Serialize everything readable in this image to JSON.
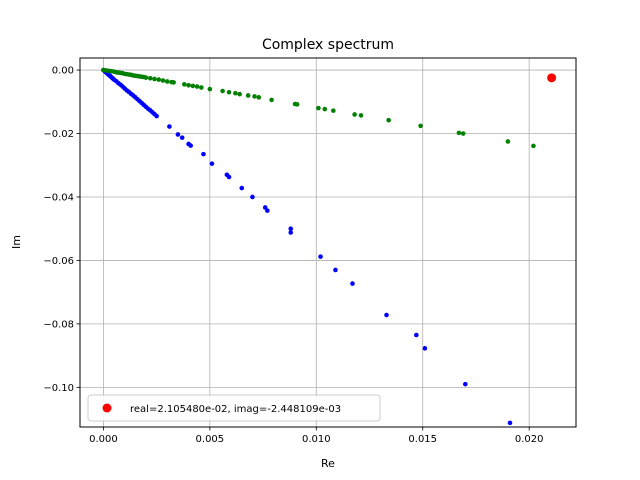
{
  "chart_data": {
    "type": "scatter",
    "title": "Complex spectrum",
    "xlabel": "Re",
    "ylabel": "Im",
    "xlim": [
      -0.0011,
      0.0222
    ],
    "ylim": [
      -0.1125,
      0.0038
    ],
    "xticks": [
      {
        "value": 0.0,
        "label": "0.000"
      },
      {
        "value": 0.005,
        "label": "0.005"
      },
      {
        "value": 0.01,
        "label": "0.010"
      },
      {
        "value": 0.015,
        "label": "0.015"
      },
      {
        "value": 0.02,
        "label": "0.020"
      }
    ],
    "yticks": [
      {
        "value": 0.0,
        "label": "0.00"
      },
      {
        "value": -0.02,
        "label": "−0.02"
      },
      {
        "value": -0.04,
        "label": "−0.04"
      },
      {
        "value": -0.06,
        "label": "−0.06"
      },
      {
        "value": -0.08,
        "label": "−0.08"
      },
      {
        "value": -0.1,
        "label": "−0.10"
      }
    ],
    "grid": true,
    "legend_position": "lower-left",
    "series": [
      {
        "color": "#0000ff",
        "marker": "small-dot",
        "points": [
          [
            0.0,
            0.0
          ],
          [
            5e-05,
            -0.0003
          ],
          [
            0.0001,
            -0.0006
          ],
          [
            0.00015,
            -0.0009
          ],
          [
            0.0002,
            -0.0012
          ],
          [
            0.00025,
            -0.0015
          ],
          [
            0.0003,
            -0.0018
          ],
          [
            0.00035,
            -0.0021
          ],
          [
            0.0004,
            -0.0024
          ],
          [
            0.00045,
            -0.0027
          ],
          [
            0.0005,
            -0.003
          ],
          [
            0.0006,
            -0.0035
          ],
          [
            0.0007,
            -0.0041
          ],
          [
            0.0008,
            -0.0046
          ],
          [
            0.0009,
            -0.0052
          ],
          [
            0.001,
            -0.0058
          ],
          [
            0.0011,
            -0.0064
          ],
          [
            0.0012,
            -0.0069
          ],
          [
            0.0013,
            -0.0075
          ],
          [
            0.0014,
            -0.008
          ],
          [
            0.0015,
            -0.0086
          ],
          [
            0.0016,
            -0.0092
          ],
          [
            0.0017,
            -0.0098
          ],
          [
            0.0018,
            -0.0104
          ],
          [
            0.0019,
            -0.011
          ],
          [
            0.002,
            -0.0116
          ],
          [
            0.0021,
            -0.0122
          ],
          [
            0.0022,
            -0.0127
          ],
          [
            0.0023,
            -0.0133
          ],
          [
            0.0024,
            -0.0139
          ],
          [
            0.0025,
            -0.0145
          ],
          [
            0.0031,
            -0.0178
          ],
          [
            0.0035,
            -0.0203
          ],
          [
            0.0037,
            -0.0213
          ],
          [
            0.004,
            -0.0233
          ],
          [
            0.0041,
            -0.0238
          ],
          [
            0.0047,
            -0.0265
          ],
          [
            0.0051,
            -0.0295
          ],
          [
            0.0058,
            -0.033
          ],
          [
            0.0059,
            -0.0337
          ],
          [
            0.0065,
            -0.0372
          ],
          [
            0.007,
            -0.04
          ],
          [
            0.0076,
            -0.0433
          ],
          [
            0.0077,
            -0.0443
          ],
          [
            0.0088,
            -0.05
          ],
          [
            0.0088,
            -0.0512
          ],
          [
            0.0102,
            -0.0588
          ],
          [
            0.0109,
            -0.063
          ],
          [
            0.0117,
            -0.0673
          ],
          [
            0.0133,
            -0.0772
          ],
          [
            0.0147,
            -0.0835
          ],
          [
            0.0151,
            -0.0877
          ],
          [
            0.017,
            -0.099
          ],
          [
            0.0191,
            -0.1112
          ]
        ]
      },
      {
        "color": "#008000",
        "marker": "small-dot",
        "points": [
          [
            0.0,
            0.0
          ],
          [
            0.0001,
            -0.0001
          ],
          [
            0.0002,
            -0.0002
          ],
          [
            0.0003,
            -0.0003
          ],
          [
            0.0004,
            -0.0004
          ],
          [
            0.0005,
            -0.0005
          ],
          [
            0.0006,
            -0.0007
          ],
          [
            0.0007,
            -0.0008
          ],
          [
            0.0008,
            -0.0009
          ],
          [
            0.0009,
            -0.001
          ],
          [
            0.001,
            -0.0012
          ],
          [
            0.0011,
            -0.0013
          ],
          [
            0.0012,
            -0.0014
          ],
          [
            0.0013,
            -0.0015
          ],
          [
            0.0014,
            -0.0017
          ],
          [
            0.0015,
            -0.0018
          ],
          [
            0.0016,
            -0.0019
          ],
          [
            0.0017,
            -0.002
          ],
          [
            0.0018,
            -0.0021
          ],
          [
            0.0019,
            -0.0022
          ],
          [
            0.002,
            -0.0024
          ],
          [
            0.0022,
            -0.0026
          ],
          [
            0.0024,
            -0.0028
          ],
          [
            0.0026,
            -0.003
          ],
          [
            0.0028,
            -0.0033
          ],
          [
            0.003,
            -0.0036
          ],
          [
            0.0032,
            -0.0038
          ],
          [
            0.0033,
            -0.0039
          ],
          [
            0.0038,
            -0.0045
          ],
          [
            0.004,
            -0.0048
          ],
          [
            0.0042,
            -0.005
          ],
          [
            0.0044,
            -0.0052
          ],
          [
            0.0046,
            -0.0055
          ],
          [
            0.005,
            -0.006
          ],
          [
            0.0056,
            -0.0066
          ],
          [
            0.0059,
            -0.007
          ],
          [
            0.0062,
            -0.0073
          ],
          [
            0.0064,
            -0.0076
          ],
          [
            0.0068,
            -0.008
          ],
          [
            0.0071,
            -0.0083
          ],
          [
            0.0073,
            -0.0086
          ],
          [
            0.0079,
            -0.0094
          ],
          [
            0.009,
            -0.0107
          ],
          [
            0.0091,
            -0.0108
          ],
          [
            0.0101,
            -0.012
          ],
          [
            0.0104,
            -0.0123
          ],
          [
            0.0108,
            -0.0128
          ],
          [
            0.0118,
            -0.014
          ],
          [
            0.0121,
            -0.0143
          ],
          [
            0.0134,
            -0.0158
          ],
          [
            0.0149,
            -0.0176
          ],
          [
            0.0167,
            -0.0198
          ],
          [
            0.0169,
            -0.02
          ],
          [
            0.019,
            -0.0225
          ],
          [
            0.0202,
            -0.0239
          ]
        ]
      },
      {
        "color": "#ff0000",
        "marker": "large-dot",
        "name": "real=2.105480e-02, imag=-2.448109e-03",
        "points": [
          [
            0.0210548,
            -0.002448109
          ]
        ]
      }
    ]
  }
}
